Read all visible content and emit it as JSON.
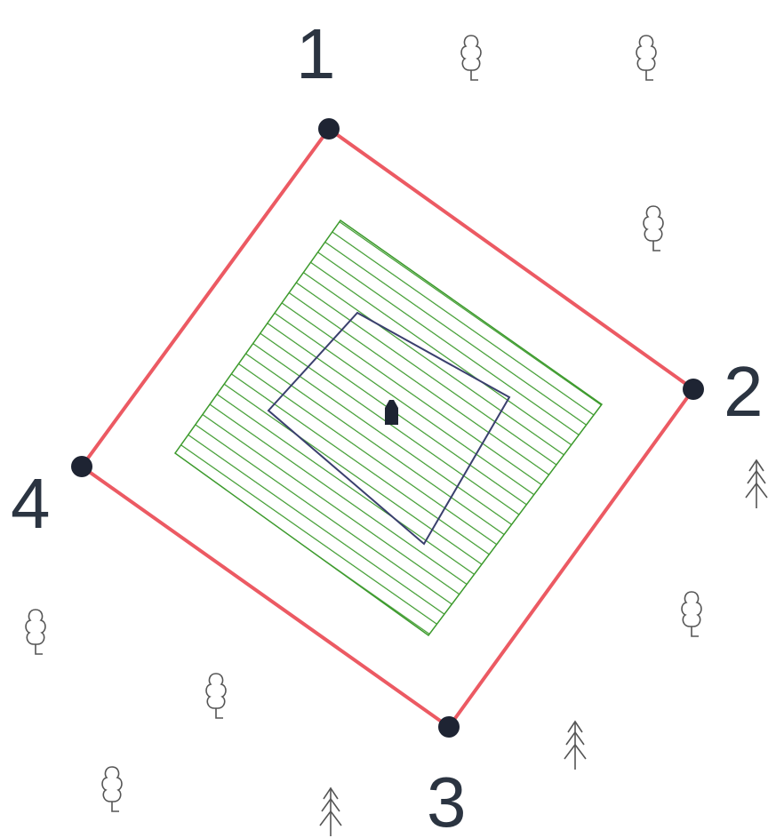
{
  "map": {
    "corners": [
      {
        "label": "1"
      },
      {
        "label": "2"
      },
      {
        "label": "3"
      },
      {
        "label": "4"
      }
    ],
    "colors": {
      "boundary": "#ec5a63",
      "hatch": "#3c9a2c",
      "building_outline": "#3a3f6e",
      "marker": "#1e2433",
      "label": "#2b3441",
      "tree": "#555555"
    },
    "symbols": {
      "building": "building-icon",
      "deciduous_tree": "deciduous-tree-icon",
      "conifer_tree": "conifer-tree-icon"
    }
  }
}
